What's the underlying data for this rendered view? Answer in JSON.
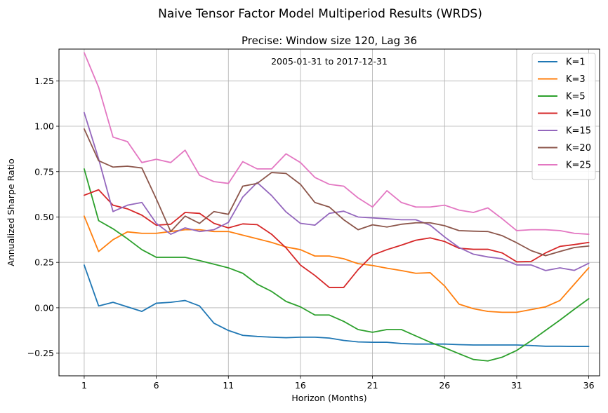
{
  "suptitle": "Naive Tensor Factor Model Multiperiod Results (WRDS)",
  "chart_data": {
    "type": "line",
    "title": "Precise: Window size 120, Lag 36",
    "annotation": "2005-01-31 to 2017-12-31",
    "xlabel": "Horizon (Months)",
    "ylabel": "Annualized Sharpe Ratio",
    "xlim": [
      -0.75,
      36.75
    ],
    "ylim": [
      -0.375,
      1.425
    ],
    "xticks": [
      1,
      6,
      11,
      16,
      21,
      26,
      31,
      36
    ],
    "yticks": [
      -0.25,
      0.0,
      0.25,
      0.5,
      0.75,
      1.0,
      1.25
    ],
    "ytick_labels": [
      "−0.25",
      "0.00",
      "0.25",
      "0.50",
      "0.75",
      "1.00",
      "1.25"
    ],
    "grid": true,
    "legend_position": "top-right",
    "x": [
      1,
      2,
      3,
      4,
      5,
      6,
      7,
      8,
      9,
      10,
      11,
      12,
      13,
      14,
      15,
      16,
      17,
      18,
      19,
      20,
      21,
      22,
      23,
      24,
      25,
      26,
      27,
      28,
      29,
      30,
      31,
      32,
      33,
      34,
      35,
      36
    ],
    "series": [
      {
        "name": "K=1",
        "color": "#1f77b4",
        "values": [
          0.235,
          0.01,
          0.03,
          0.005,
          -0.02,
          0.025,
          0.03,
          0.04,
          0.01,
          -0.085,
          -0.125,
          -0.152,
          -0.158,
          -0.162,
          -0.165,
          -0.162,
          -0.162,
          -0.167,
          -0.18,
          -0.188,
          -0.19,
          -0.19,
          -0.197,
          -0.2,
          -0.2,
          -0.2,
          -0.203,
          -0.205,
          -0.205,
          -0.205,
          -0.205,
          -0.208,
          -0.212,
          -0.212,
          -0.213,
          -0.213
        ]
      },
      {
        "name": "K=3",
        "color": "#ff7f0e",
        "values": [
          0.505,
          0.31,
          0.375,
          0.418,
          0.41,
          0.41,
          0.42,
          0.43,
          0.43,
          0.42,
          0.42,
          0.4,
          0.38,
          0.36,
          0.335,
          0.32,
          0.285,
          0.285,
          0.27,
          0.243,
          0.233,
          0.218,
          0.205,
          0.19,
          0.193,
          0.12,
          0.02,
          -0.005,
          -0.02,
          -0.025,
          -0.025,
          -0.01,
          0.005,
          0.04,
          0.13,
          0.22
        ]
      },
      {
        "name": "K=5",
        "color": "#2ca02c",
        "values": [
          0.765,
          0.48,
          0.435,
          0.38,
          0.32,
          0.278,
          0.278,
          0.278,
          0.26,
          0.24,
          0.22,
          0.19,
          0.13,
          0.09,
          0.035,
          0.005,
          -0.04,
          -0.04,
          -0.075,
          -0.12,
          -0.135,
          -0.12,
          -0.12,
          -0.155,
          -0.19,
          -0.22,
          -0.253,
          -0.285,
          -0.293,
          -0.272,
          -0.235,
          -0.182,
          -0.125,
          -0.068,
          -0.008,
          0.05
        ]
      },
      {
        "name": "K=10",
        "color": "#d62728",
        "values": [
          0.62,
          0.65,
          0.565,
          0.545,
          0.51,
          0.455,
          0.46,
          0.525,
          0.52,
          0.465,
          0.44,
          0.462,
          0.458,
          0.405,
          0.33,
          0.235,
          0.178,
          0.112,
          0.112,
          0.21,
          0.29,
          0.32,
          0.345,
          0.372,
          0.385,
          0.365,
          0.328,
          0.322,
          0.322,
          0.302,
          0.253,
          0.255,
          0.302,
          0.338,
          0.348,
          0.36
        ]
      },
      {
        "name": "K=15",
        "color": "#9467bd",
        "values": [
          1.075,
          0.82,
          0.53,
          0.565,
          0.58,
          0.465,
          0.405,
          0.44,
          0.42,
          0.43,
          0.47,
          0.61,
          0.69,
          0.618,
          0.528,
          0.465,
          0.455,
          0.52,
          0.532,
          0.5,
          0.495,
          0.49,
          0.485,
          0.485,
          0.455,
          0.39,
          0.332,
          0.295,
          0.28,
          0.27,
          0.236,
          0.236,
          0.205,
          0.22,
          0.206,
          0.245
        ]
      },
      {
        "name": "K=20",
        "color": "#8c564b",
        "values": [
          0.985,
          0.81,
          0.775,
          0.78,
          0.77,
          0.6,
          0.42,
          0.505,
          0.465,
          0.53,
          0.515,
          0.67,
          0.685,
          0.745,
          0.74,
          0.68,
          0.58,
          0.555,
          0.485,
          0.43,
          0.457,
          0.445,
          0.46,
          0.468,
          0.468,
          0.452,
          0.425,
          0.422,
          0.42,
          0.397,
          0.358,
          0.315,
          0.287,
          0.31,
          0.332,
          0.34
        ]
      },
      {
        "name": "K=25",
        "color": "#e377c2",
        "values": [
          1.405,
          1.215,
          0.94,
          0.915,
          0.8,
          0.818,
          0.8,
          0.868,
          0.73,
          0.695,
          0.685,
          0.805,
          0.765,
          0.765,
          0.848,
          0.8,
          0.718,
          0.68,
          0.67,
          0.605,
          0.555,
          0.645,
          0.58,
          0.555,
          0.555,
          0.565,
          0.538,
          0.525,
          0.55,
          0.49,
          0.425,
          0.43,
          0.43,
          0.425,
          0.41,
          0.405
        ]
      }
    ]
  }
}
